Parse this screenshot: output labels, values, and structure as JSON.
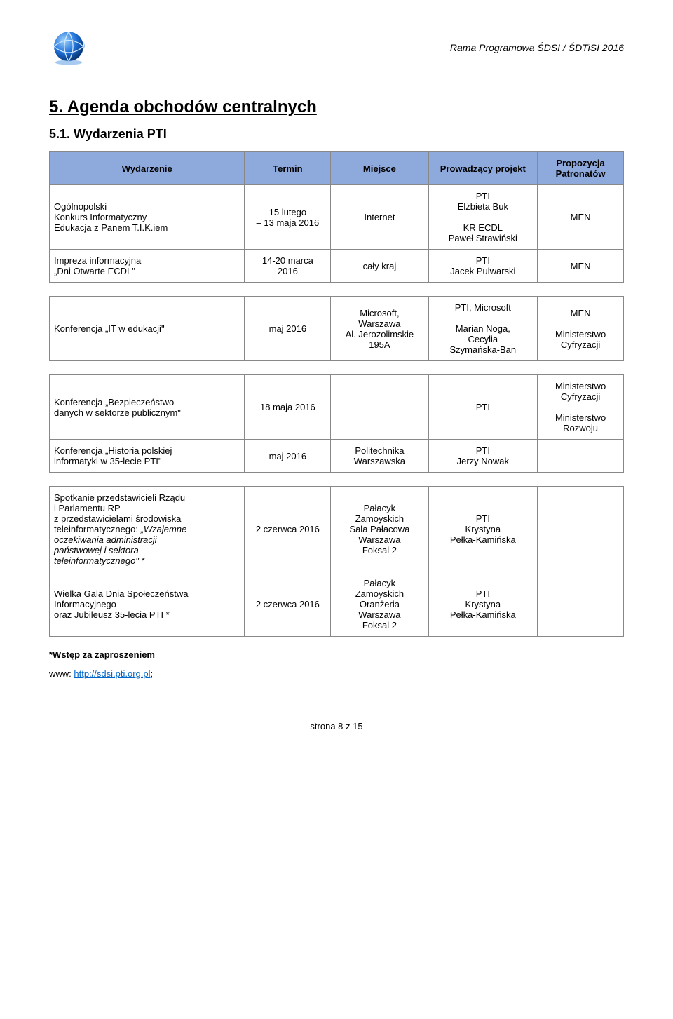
{
  "header": {
    "doc_title": "Rama Programowa ŚDSI / ŚDTiSI  2016"
  },
  "section": {
    "number_title": "5.   Agenda obchodów centralnych",
    "sub_title": "5.1. Wydarzenia PTI"
  },
  "table": {
    "header_bg": "#8ea9db",
    "columns": [
      "Wydarzenie",
      "Termin",
      "Miejsce",
      "Prowadzący projekt",
      "Propozycja Patronatów"
    ]
  },
  "rows": [
    {
      "event": "Ogólnopolski\nKonkurs Informatyczny\nEdukacja z Panem T.I.K.iem",
      "term": "15 lutego\n– 13 maja 2016",
      "place": "Internet",
      "lead": "PTI\nElżbieta Buk\n\nKR ECDL\nPaweł Strawiński",
      "patron": "MEN"
    },
    {
      "event": "Impreza informacyjna\n„Dni Otwarte ECDL\"",
      "term": "14-20 marca\n2016",
      "place": "cały kraj",
      "lead": "PTI\nJacek Pulwarski",
      "patron": "MEN"
    },
    {
      "spacer": true
    },
    {
      "event": "Konferencja „IT w edukacji\"",
      "term": "maj 2016",
      "place": "Microsoft,\nWarszawa\nAl. Jerozolimskie\n195A",
      "lead": "PTI, Microsoft\n\nMarian Noga,\nCecylia\nSzymańska-Ban",
      "patron": "MEN\n\nMinisterstwo\nCyfryzacji"
    },
    {
      "spacer": true
    },
    {
      "event": "Konferencja „Bezpieczeństwo\ndanych w sektorze publicznym\"",
      "term": "18 maja 2016",
      "place": "",
      "lead": "PTI",
      "patron": "Ministerstwo\nCyfryzacji\n\nMinisterstwo\nRozwoju"
    },
    {
      "event": "Konferencja „Historia polskiej\ninformatyki w 35-lecie PTI\"",
      "term": "maj 2016",
      "place": "Politechnika\nWarszawska",
      "lead": "PTI\nJerzy Nowak",
      "patron": ""
    },
    {
      "spacer": true
    },
    {
      "event_html": "Spotkanie przedstawicieli Rządu\ni Parlamentu RP\nz przedstawicielami środowiska\nteleinformatycznego: <span class=\"ital\">„Wzajemne\noczekiwania administracji\npaństwowej i sektora\nteleinformatycznego\"</span>  *",
      "term": "2 czerwca 2016",
      "place": "Pałacyk\nZamoyskich\nSala Pałacowa\nWarszawa\nFoksal 2",
      "lead": "PTI\nKrystyna\nPełka-Kamińska",
      "patron": ""
    },
    {
      "event": "Wielka Gala Dnia Społeczeństwa\nInformacyjnego\noraz Jubileusz 35-lecia PTI  *",
      "term": "2 czerwca 2016",
      "place": "Pałacyk\nZamoyskich\nOranżeria\nWarszawa\nFoksal 2",
      "lead": "PTI\nKrystyna\nPełka-Kamińska",
      "patron": ""
    }
  ],
  "footnote": "*Wstęp za zaproszeniem",
  "www": {
    "label": "www:  ",
    "link_text": "http://sdsi.pti.org.pl",
    "trail": ";"
  },
  "footer": "strona 8 z 15"
}
